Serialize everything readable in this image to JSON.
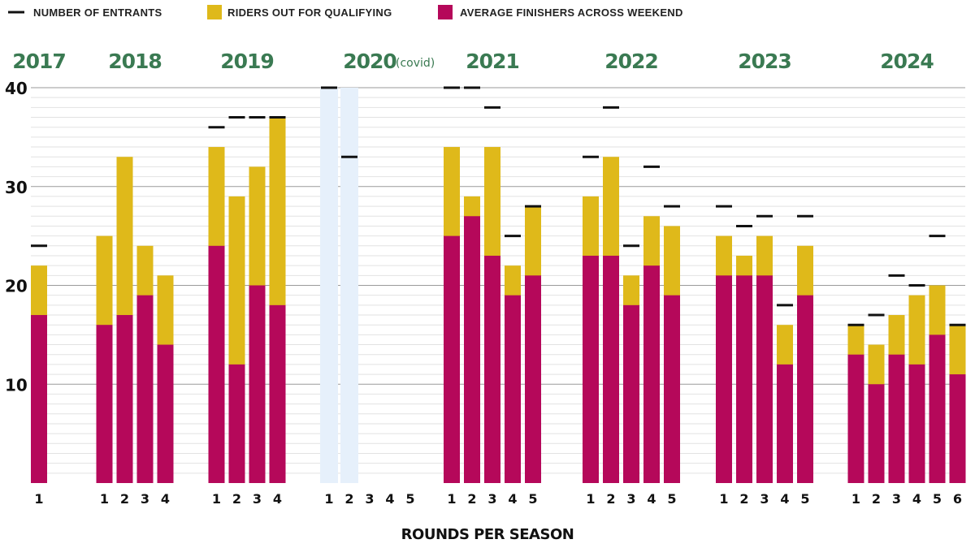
{
  "legend": {
    "entrants": "NUMBER OF ENTRANTS",
    "qualifying": "RIDERS OUT FOR QUALIFYING",
    "finishers": "AVERAGE FINISHERS ACROSS WEEKEND"
  },
  "colors": {
    "qualifying": "#dfb91a",
    "finishers": "#b5085a",
    "entrants": "#111111",
    "year_label": "#3a7a52",
    "covid_shade": "#e6f0fb",
    "grid_major": "#9a9a9a",
    "grid_minor": "#e2e2e2"
  },
  "chart_data": {
    "type": "bar",
    "xlabel": "ROUNDS PER SEASON",
    "ylabel": "",
    "ylim": [
      0,
      40
    ],
    "yticks": [
      10,
      20,
      30,
      40
    ],
    "grid": true,
    "legend_position": "top-left",
    "years": [
      {
        "year": "2017",
        "note": "",
        "rounds": [
          "1"
        ],
        "finishers": [
          17
        ],
        "qualifying": [
          22
        ],
        "entrants": [
          24
        ]
      },
      {
        "year": "2018",
        "note": "",
        "rounds": [
          "1",
          "2",
          "3",
          "4"
        ],
        "finishers": [
          16,
          17,
          19,
          14
        ],
        "qualifying": [
          25,
          33,
          24,
          21
        ],
        "entrants": [
          null,
          null,
          null,
          null
        ]
      },
      {
        "year": "2019",
        "note": "",
        "rounds": [
          "1",
          "2",
          "3",
          "4"
        ],
        "finishers": [
          24,
          12,
          20,
          18
        ],
        "qualifying": [
          34,
          29,
          32,
          37
        ],
        "entrants": [
          36,
          37,
          37,
          37
        ]
      },
      {
        "year": "2020",
        "note": "(covid)",
        "rounds": [
          "1",
          "2",
          "3",
          "4",
          "5"
        ],
        "finishers": [
          null,
          null,
          null,
          null,
          null
        ],
        "qualifying": [
          null,
          null,
          null,
          null,
          null
        ],
        "entrants": [
          40,
          33,
          null,
          null,
          null
        ],
        "shaded_rounds": [
          0,
          1
        ]
      },
      {
        "year": "2021",
        "note": "",
        "rounds": [
          "1",
          "2",
          "3",
          "4",
          "5"
        ],
        "finishers": [
          25,
          27,
          23,
          19,
          21
        ],
        "qualifying": [
          34,
          29,
          34,
          22,
          28
        ],
        "entrants": [
          40,
          40,
          38,
          25,
          28
        ]
      },
      {
        "year": "2022",
        "note": "",
        "rounds": [
          "1",
          "2",
          "3",
          "4",
          "5"
        ],
        "finishers": [
          23,
          23,
          18,
          22,
          19
        ],
        "qualifying": [
          29,
          33,
          21,
          27,
          26
        ],
        "entrants": [
          33,
          38,
          24,
          32,
          28
        ]
      },
      {
        "year": "2023",
        "note": "",
        "rounds": [
          "1",
          "2",
          "3",
          "4",
          "5"
        ],
        "finishers": [
          21,
          21,
          21,
          12,
          19
        ],
        "qualifying": [
          25,
          23,
          25,
          16,
          24
        ],
        "entrants": [
          28,
          26,
          27,
          18,
          27
        ]
      },
      {
        "year": "2024",
        "note": "",
        "rounds": [
          "1",
          "2",
          "3",
          "4",
          "5",
          "6"
        ],
        "finishers": [
          13,
          10,
          13,
          12,
          15,
          11
        ],
        "qualifying": [
          16,
          14,
          17,
          19,
          20,
          16
        ],
        "entrants": [
          16,
          17,
          21,
          20,
          25,
          16
        ]
      }
    ]
  }
}
